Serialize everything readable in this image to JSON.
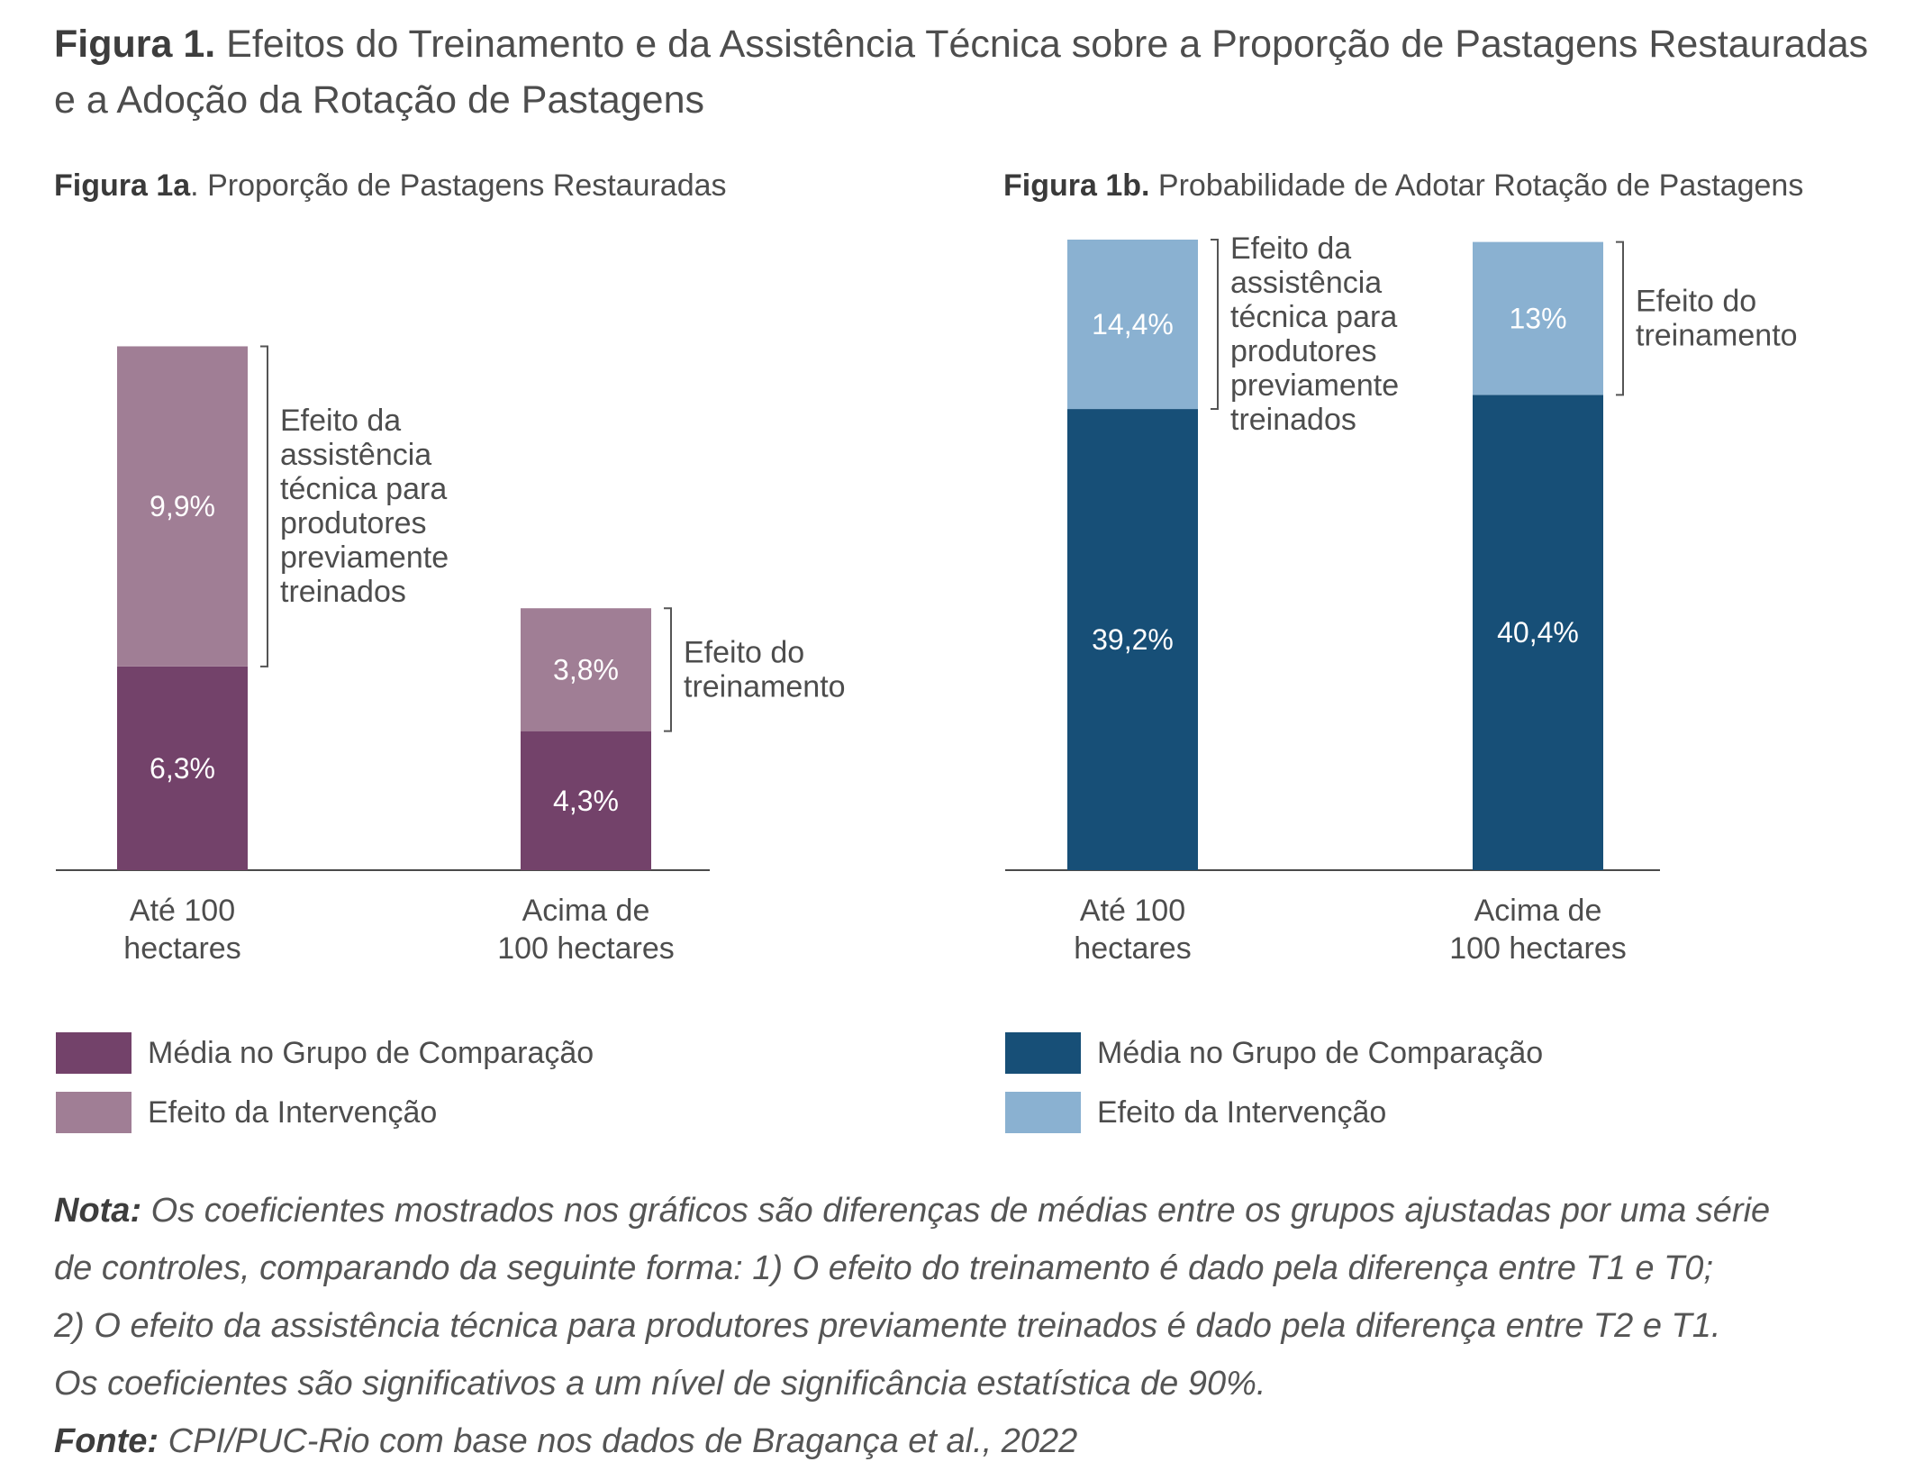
{
  "title": {
    "prefix": "Figura 1.",
    "text": "Efeitos do Treinamento e da Assistência Técnica sobre a Proporção de Pastagens Restauradas e a Adoção da Rotação de Pastagens"
  },
  "chart_data": [
    {
      "type": "bar",
      "stacked": true,
      "title_prefix": "Figura 1a",
      "title": ". Proporção de Pastagens Restauradas",
      "categories": [
        "Até 100 hectares",
        "Acima de 100 hectares"
      ],
      "category_lines": [
        [
          "Até 100",
          "hectares"
        ],
        [
          "Acima de",
          "100 hectares"
        ]
      ],
      "series": [
        {
          "name": "Média no Grupo de Comparação",
          "values": [
            6.3,
            4.3
          ],
          "labels": [
            "6,3%",
            "4,3%"
          ],
          "color": "#73426a"
        },
        {
          "name": "Efeito da Intervenção",
          "values": [
            9.9,
            3.8
          ],
          "labels": [
            "9,9%",
            "3,8%"
          ],
          "color": "#a07e95"
        }
      ],
      "annotations": [
        {
          "category": 0,
          "lines": [
            "Efeito da",
            "assistência",
            "técnica para",
            "produtores",
            "previamente",
            "treinados"
          ]
        },
        {
          "category": 1,
          "lines": [
            "Efeito do",
            "treinamento"
          ]
        }
      ],
      "ylim": [
        0,
        19.5
      ]
    },
    {
      "type": "bar",
      "stacked": true,
      "title_prefix": "Figura 1b.",
      "title": "Probabilidade de Adotar Rotação de Pastagens",
      "categories": [
        "Até 100 hectares",
        "Acima de 100 hectares"
      ],
      "category_lines": [
        [
          "Até 100",
          "hectares"
        ],
        [
          "Acima de",
          "100 hectares"
        ]
      ],
      "series": [
        {
          "name": "Média no Grupo de Comparação",
          "values": [
            39.2,
            40.4
          ],
          "labels": [
            "39,2%",
            "40,4%"
          ],
          "color": "#174f77"
        },
        {
          "name": "Efeito da Intervenção",
          "values": [
            14.4,
            13.0
          ],
          "labels": [
            "14,4%",
            "13%"
          ],
          "color": "#8ab1d1"
        }
      ],
      "annotations": [
        {
          "category": 0,
          "lines": [
            "Efeito da",
            "assistência",
            "técnica para",
            "produtores",
            "previamente",
            "treinados"
          ]
        },
        {
          "category": 1,
          "lines": [
            "Efeito do",
            "treinamento"
          ]
        }
      ],
      "ylim": [
        0,
        53.6
      ]
    }
  ],
  "notes": {
    "nota_label": "Nota:",
    "nota_lines": [
      "Os coeficientes mostrados nos gráficos são diferenças de médias entre os grupos ajustadas por uma série",
      "de controles, comparando da seguinte forma: 1) O efeito do treinamento é dado pela diferença entre T1 e T0;",
      "2) O efeito da assistência técnica para produtores previamente treinados é dado pela diferença entre T2 e T1.",
      "Os coeficientes são significativos a um nível de significância estatística de 90%."
    ],
    "fonte_label": "Fonte:",
    "fonte_text": "CPI/PUC-Rio com base nos dados de Bragança et al., 2022"
  }
}
